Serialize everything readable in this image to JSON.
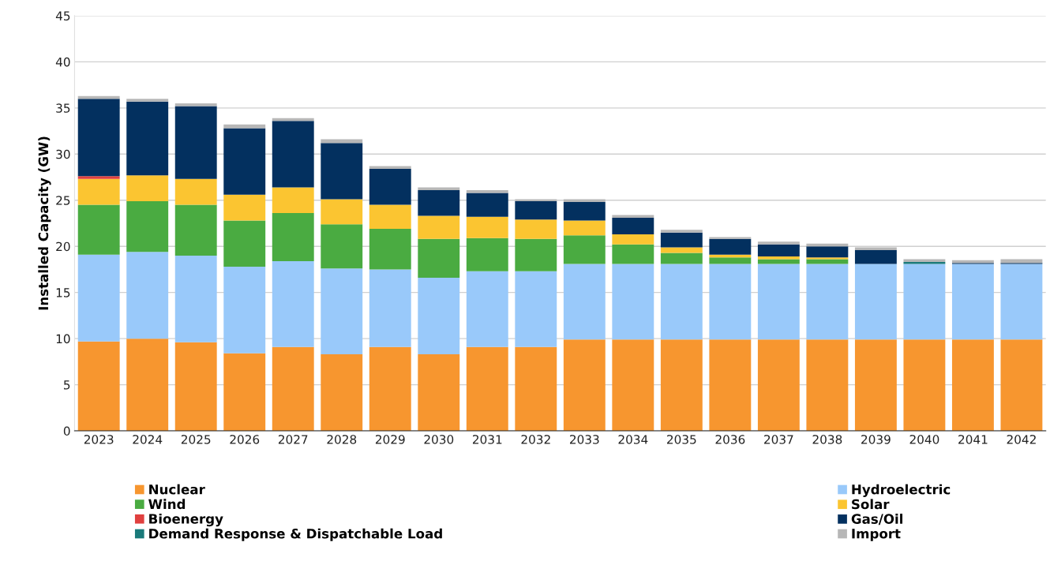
{
  "chart_data": {
    "type": "bar",
    "stacked": true,
    "ylabel": "Installed Capacity (GW)",
    "categories": [
      "2023",
      "2024",
      "2025",
      "2026",
      "2027",
      "2028",
      "2029",
      "2030",
      "2031",
      "2032",
      "2033",
      "2034",
      "2035",
      "2036",
      "2037",
      "2038",
      "2039",
      "2040",
      "2041",
      "2042"
    ],
    "series": [
      {
        "name": "Nuclear",
        "color": "#f7962f",
        "values": [
          9.7,
          10.0,
          9.6,
          8.4,
          9.1,
          8.3,
          9.1,
          8.3,
          9.1,
          9.1,
          9.9,
          9.9,
          9.9,
          9.9,
          9.9,
          9.9,
          9.9,
          9.9,
          9.9,
          9.9
        ]
      },
      {
        "name": "Hydroelectric",
        "color": "#99c9fa",
        "values": [
          9.4,
          9.4,
          9.4,
          9.4,
          9.3,
          9.3,
          8.4,
          8.3,
          8.2,
          8.2,
          8.2,
          8.2,
          8.2,
          8.2,
          8.2,
          8.2,
          8.2,
          8.2,
          8.2,
          8.2
        ]
      },
      {
        "name": "Wind",
        "color": "#4aab41",
        "values": [
          5.4,
          5.5,
          5.5,
          5.0,
          5.2,
          4.8,
          4.4,
          4.2,
          3.6,
          3.5,
          3.1,
          2.1,
          1.2,
          0.7,
          0.5,
          0.5,
          0,
          0,
          0,
          0
        ]
      },
      {
        "name": "Solar",
        "color": "#fbc531",
        "values": [
          2.8,
          2.8,
          2.8,
          2.8,
          2.8,
          2.7,
          2.6,
          2.5,
          2.3,
          2.1,
          1.6,
          1.1,
          0.6,
          0.3,
          0.3,
          0.2,
          0,
          0,
          0,
          0
        ]
      },
      {
        "name": "Bioenergy",
        "color": "#e0403f",
        "values": [
          0.3,
          0,
          0,
          0,
          0,
          0,
          0,
          0,
          0,
          0,
          0,
          0,
          0,
          0,
          0,
          0,
          0,
          0,
          0,
          0
        ]
      },
      {
        "name": "Gas/Oil",
        "color": "#03305f",
        "values": [
          8.4,
          8.0,
          7.9,
          7.2,
          7.2,
          6.1,
          3.9,
          2.8,
          2.6,
          2.0,
          2.0,
          1.8,
          1.6,
          1.7,
          1.3,
          1.2,
          1.5,
          0,
          0.1,
          0.1
        ]
      },
      {
        "name": "Demand Response & Dispatchable Load",
        "color": "#1a7a7a",
        "values": [
          0,
          0,
          0,
          0,
          0,
          0,
          0,
          0,
          0,
          0,
          0,
          0,
          0,
          0,
          0,
          0,
          0,
          0.2,
          0,
          0
        ]
      },
      {
        "name": "Import",
        "color": "#b7b7b7",
        "values": [
          0.3,
          0.3,
          0.3,
          0.4,
          0.3,
          0.4,
          0.3,
          0.3,
          0.3,
          0.2,
          0.3,
          0.3,
          0.3,
          0.2,
          0.3,
          0.3,
          0.3,
          0.3,
          0.3,
          0.4
        ]
      }
    ],
    "ylim": [
      0,
      45
    ],
    "yticks": [
      0,
      5,
      10,
      15,
      20,
      25,
      30,
      35,
      40,
      45
    ],
    "grid": "y",
    "legend": "bottom"
  }
}
